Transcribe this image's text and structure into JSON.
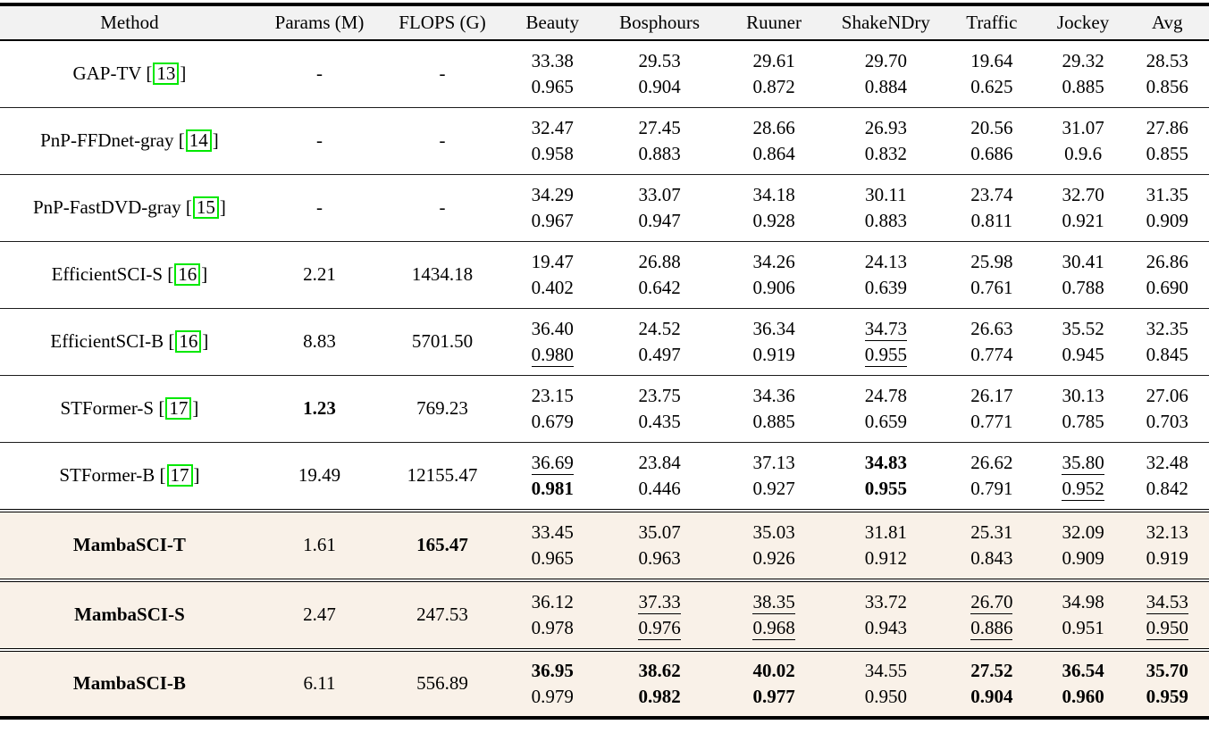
{
  "colors": {
    "header_bg": "#f2f2f2",
    "highlight_bg": "#f9f1e8",
    "citation_border": "#00e800",
    "rule": "#000000",
    "text": "#000000"
  },
  "table": {
    "columns": [
      "Method",
      "Params (M)",
      "FLOPS (G)",
      "Beauty",
      "Bosphours",
      "Ruuner",
      "ShakeNDry",
      "Traffic",
      "Jockey",
      "Avg"
    ],
    "rows": [
      {
        "method": "GAP-TV",
        "citation": "13",
        "method_style": "normal",
        "highlight": false,
        "params": "-",
        "flops": "-",
        "metrics": [
          {
            "psnr": "33.38",
            "ssim": "0.965"
          },
          {
            "psnr": "29.53",
            "ssim": "0.904"
          },
          {
            "psnr": "29.61",
            "ssim": "0.872"
          },
          {
            "psnr": "29.70",
            "ssim": "0.884"
          },
          {
            "psnr": "19.64",
            "ssim": "0.625"
          },
          {
            "psnr": "29.32",
            "ssim": "0.885"
          },
          {
            "psnr": "28.53",
            "ssim": "0.856"
          }
        ],
        "separator_after": "thin"
      },
      {
        "method": "PnP-FFDnet-gray",
        "citation": "14",
        "method_style": "normal",
        "highlight": false,
        "params": "-",
        "flops": "-",
        "metrics": [
          {
            "psnr": "32.47",
            "ssim": "0.958"
          },
          {
            "psnr": "27.45",
            "ssim": "0.883"
          },
          {
            "psnr": "28.66",
            "ssim": "0.864"
          },
          {
            "psnr": "26.93",
            "ssim": "0.832"
          },
          {
            "psnr": "20.56",
            "ssim": "0.686"
          },
          {
            "psnr": "31.07",
            "ssim": "0.9.6"
          },
          {
            "psnr": "27.86",
            "ssim": "0.855"
          }
        ],
        "separator_after": "thin"
      },
      {
        "method": "PnP-FastDVD-gray",
        "citation": "15",
        "method_style": "normal",
        "highlight": false,
        "params": "-",
        "flops": "-",
        "metrics": [
          {
            "psnr": "34.29",
            "ssim": "0.967"
          },
          {
            "psnr": "33.07",
            "ssim": "0.947"
          },
          {
            "psnr": "34.18",
            "ssim": "0.928"
          },
          {
            "psnr": "30.11",
            "ssim": "0.883"
          },
          {
            "psnr": "23.74",
            "ssim": "0.811"
          },
          {
            "psnr": "32.70",
            "ssim": "0.921"
          },
          {
            "psnr": "31.35",
            "ssim": "0.909"
          }
        ],
        "separator_after": "thin"
      },
      {
        "method": "EfficientSCI-S",
        "citation": "16",
        "method_style": "normal",
        "highlight": false,
        "params": "2.21",
        "flops": "1434.18",
        "metrics": [
          {
            "psnr": "19.47",
            "ssim": "0.402"
          },
          {
            "psnr": "26.88",
            "ssim": "0.642"
          },
          {
            "psnr": "34.26",
            "ssim": "0.906"
          },
          {
            "psnr": "24.13",
            "ssim": "0.639"
          },
          {
            "psnr": "25.98",
            "ssim": "0.761"
          },
          {
            "psnr": "30.41",
            "ssim": "0.788"
          },
          {
            "psnr": "26.86",
            "ssim": "0.690"
          }
        ],
        "separator_after": "thin"
      },
      {
        "method": "EfficientSCI-B",
        "citation": "16",
        "method_style": "normal",
        "highlight": false,
        "params": "8.83",
        "flops": "5701.50",
        "metrics": [
          {
            "psnr": "36.40",
            "ssim": "0.980",
            "ssim_style": "underline"
          },
          {
            "psnr": "24.52",
            "ssim": "0.497"
          },
          {
            "psnr": "36.34",
            "ssim": "0.919"
          },
          {
            "psnr": "34.73",
            "psnr_style": "underline",
            "ssim": "0.955",
            "ssim_style": "underline"
          },
          {
            "psnr": "26.63",
            "ssim": "0.774"
          },
          {
            "psnr": "35.52",
            "ssim": "0.945"
          },
          {
            "psnr": "32.35",
            "ssim": "0.845"
          }
        ],
        "separator_after": "thin"
      },
      {
        "method": "STFormer-S",
        "citation": "17",
        "method_style": "normal",
        "highlight": false,
        "params": "1.23",
        "params_style": "bold",
        "flops": "769.23",
        "metrics": [
          {
            "psnr": "23.15",
            "ssim": "0.679"
          },
          {
            "psnr": "23.75",
            "ssim": "0.435"
          },
          {
            "psnr": "34.36",
            "ssim": "0.885"
          },
          {
            "psnr": "24.78",
            "ssim": "0.659"
          },
          {
            "psnr": "26.17",
            "ssim": "0.771"
          },
          {
            "psnr": "30.13",
            "ssim": "0.785"
          },
          {
            "psnr": "27.06",
            "ssim": "0.703"
          }
        ],
        "separator_after": "thin"
      },
      {
        "method": "STFormer-B",
        "citation": "17",
        "method_style": "normal",
        "highlight": false,
        "params": "19.49",
        "flops": "12155.47",
        "metrics": [
          {
            "psnr": "36.69",
            "psnr_style": "underline",
            "ssim": "0.981",
            "ssim_style": "bold"
          },
          {
            "psnr": "23.84",
            "ssim": "0.446"
          },
          {
            "psnr": "37.13",
            "ssim": "0.927"
          },
          {
            "psnr": "34.83",
            "psnr_style": "bold",
            "ssim": "0.955",
            "ssim_style": "bold"
          },
          {
            "psnr": "26.62",
            "ssim": "0.791"
          },
          {
            "psnr": "35.80",
            "psnr_style": "underline",
            "ssim": "0.952",
            "ssim_style": "underline"
          },
          {
            "psnr": "32.48",
            "ssim": "0.842"
          }
        ],
        "separator_after": "double"
      },
      {
        "method": "MambaSCI-T",
        "method_style": "bold",
        "highlight": true,
        "params": "1.61",
        "flops": "165.47",
        "flops_style": "bold",
        "metrics": [
          {
            "psnr": "33.45",
            "ssim": "0.965"
          },
          {
            "psnr": "35.07",
            "ssim": "0.963"
          },
          {
            "psnr": "35.03",
            "ssim": "0.926"
          },
          {
            "psnr": "31.81",
            "ssim": "0.912"
          },
          {
            "psnr": "25.31",
            "ssim": "0.843"
          },
          {
            "psnr": "32.09",
            "ssim": "0.909"
          },
          {
            "psnr": "32.13",
            "ssim": "0.919"
          }
        ],
        "separator_after": "double"
      },
      {
        "method": "MambaSCI-S",
        "method_style": "bold",
        "highlight": true,
        "params": "2.47",
        "flops": "247.53",
        "metrics": [
          {
            "psnr": "36.12",
            "ssim": "0.978"
          },
          {
            "psnr": "37.33",
            "psnr_style": "underline",
            "ssim": "0.976",
            "ssim_style": "underline"
          },
          {
            "psnr": "38.35",
            "psnr_style": "underline",
            "ssim": "0.968",
            "ssim_style": "underline"
          },
          {
            "psnr": "33.72",
            "ssim": "0.943"
          },
          {
            "psnr": "26.70",
            "psnr_style": "underline",
            "ssim": "0.886",
            "ssim_style": "underline"
          },
          {
            "psnr": "34.98",
            "ssim": "0.951"
          },
          {
            "psnr": "34.53",
            "psnr_style": "underline",
            "ssim": "0.950",
            "ssim_style": "underline"
          }
        ],
        "separator_after": "double"
      },
      {
        "method": "MambaSCI-B",
        "method_style": "bold",
        "highlight": true,
        "params": "6.11",
        "flops": "556.89",
        "metrics": [
          {
            "psnr": "36.95",
            "psnr_style": "bold",
            "ssim": "0.979"
          },
          {
            "psnr": "38.62",
            "psnr_style": "bold",
            "ssim": "0.982",
            "ssim_style": "bold"
          },
          {
            "psnr": "40.02",
            "psnr_style": "bold",
            "ssim": "0.977",
            "ssim_style": "bold"
          },
          {
            "psnr": "34.55",
            "ssim": "0.950"
          },
          {
            "psnr": "27.52",
            "psnr_style": "bold",
            "ssim": "0.904",
            "ssim_style": "bold"
          },
          {
            "psnr": "36.54",
            "psnr_style": "bold",
            "ssim": "0.960",
            "ssim_style": "bold"
          },
          {
            "psnr": "35.70",
            "psnr_style": "bold",
            "ssim": "0.959",
            "ssim_style": "bold"
          }
        ],
        "separator_after": "none"
      }
    ]
  }
}
